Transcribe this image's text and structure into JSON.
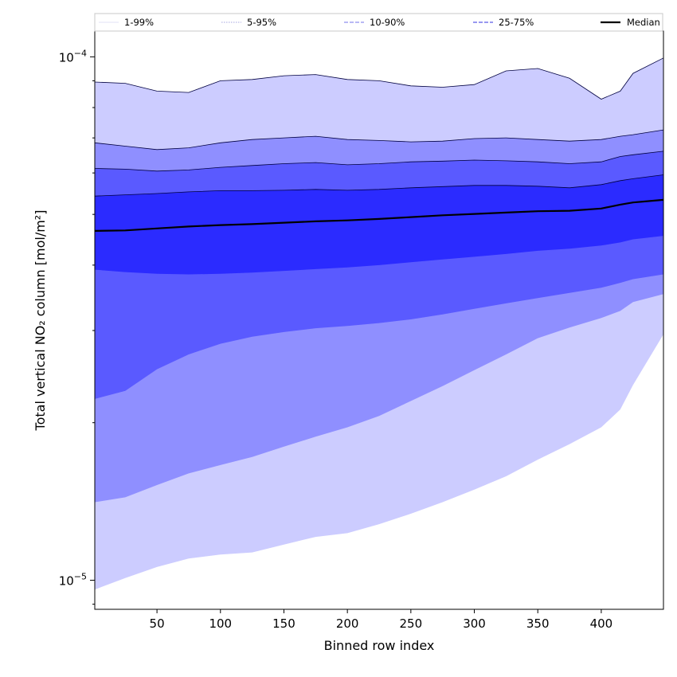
{
  "chart_data": {
    "type": "area",
    "xlabel": "Binned row index",
    "ylabel": "Total vertical NO₂ column [mol/m²]",
    "y_scale": "log",
    "xlim": [
      1,
      449
    ],
    "ylim": [
      8.8e-06,
      0.000112
    ],
    "x_ticks": [
      50,
      100,
      150,
      200,
      250,
      300,
      350,
      400
    ],
    "y_major_ticks": [
      {
        "value": 1e-05,
        "label_base": "10",
        "label_exp": "−5"
      },
      {
        "value": 0.0001,
        "label_base": "10",
        "label_exp": "−4"
      }
    ],
    "grid": false,
    "legend": {
      "placement": "top (full width)",
      "entries": [
        {
          "label": "1-99%",
          "color": "#e6e6f7",
          "style": "solid"
        },
        {
          "label": "5-95%",
          "color": "#b8b8e6",
          "style": "dotted"
        },
        {
          "label": "10-90%",
          "color": "#8f8fef",
          "style": "dashed"
        },
        {
          "label": "25-75%",
          "color": "#5a5ae6",
          "style": "dashed"
        },
        {
          "label": "Median",
          "color": "#000000",
          "style": "solid"
        }
      ]
    },
    "x": [
      1,
      25,
      50,
      75,
      100,
      125,
      150,
      175,
      200,
      225,
      250,
      275,
      300,
      325,
      350,
      375,
      400,
      415,
      425,
      449
    ],
    "bands": [
      {
        "name": "1-99%",
        "color": "#ccccff",
        "lower": [
          9.6e-06,
          1.01e-05,
          1.06e-05,
          1.1e-05,
          1.12e-05,
          1.13e-05,
          1.17e-05,
          1.21e-05,
          1.23e-05,
          1.28e-05,
          1.34e-05,
          1.41e-05,
          1.49e-05,
          1.58e-05,
          1.7e-05,
          1.82e-05,
          1.96e-05,
          2.12e-05,
          2.36e-05,
          2.95e-05
        ],
        "upper": [
          8.95e-05,
          8.9e-05,
          8.6e-05,
          8.55e-05,
          9e-05,
          9.05e-05,
          9.2e-05,
          9.25e-05,
          9.05e-05,
          9e-05,
          8.8e-05,
          8.75e-05,
          8.85e-05,
          9.4e-05,
          9.5e-05,
          9.1e-05,
          8.3e-05,
          8.6e-05,
          9.3e-05,
          9.95e-05
        ]
      },
      {
        "name": "5-95%",
        "color": "#8f8fff",
        "lower": [
          1.41e-05,
          1.44e-05,
          1.52e-05,
          1.6e-05,
          1.66e-05,
          1.72e-05,
          1.8e-05,
          1.88e-05,
          1.96e-05,
          2.06e-05,
          2.2e-05,
          2.35e-05,
          2.52e-05,
          2.7e-05,
          2.9e-05,
          3.04e-05,
          3.17e-05,
          3.27e-05,
          3.4e-05,
          3.52e-05
        ],
        "upper": [
          6.85e-05,
          6.75e-05,
          6.65e-05,
          6.7e-05,
          6.85e-05,
          6.95e-05,
          7e-05,
          7.05e-05,
          6.95e-05,
          6.92e-05,
          6.88e-05,
          6.9e-05,
          6.98e-05,
          7e-05,
          6.95e-05,
          6.9e-05,
          6.95e-05,
          7.05e-05,
          7.1e-05,
          7.25e-05
        ]
      },
      {
        "name": "10-90%",
        "color": "#5a5aff",
        "lower": [
          2.22e-05,
          2.3e-05,
          2.53e-05,
          2.7e-05,
          2.83e-05,
          2.92e-05,
          2.98e-05,
          3.03e-05,
          3.06e-05,
          3.1e-05,
          3.15e-05,
          3.22e-05,
          3.3e-05,
          3.38e-05,
          3.46e-05,
          3.54e-05,
          3.62e-05,
          3.7e-05,
          3.76e-05,
          3.84e-05
        ],
        "upper": [
          6.12e-05,
          6.1e-05,
          6.05e-05,
          6.08e-05,
          6.15e-05,
          6.2e-05,
          6.25e-05,
          6.28e-05,
          6.22e-05,
          6.25e-05,
          6.3e-05,
          6.32e-05,
          6.35e-05,
          6.33e-05,
          6.3e-05,
          6.25e-05,
          6.3e-05,
          6.45e-05,
          6.5e-05,
          6.6e-05
        ]
      },
      {
        "name": "25-75%",
        "color": "#2b2bff",
        "lower": [
          3.92e-05,
          3.88e-05,
          3.85e-05,
          3.84e-05,
          3.85e-05,
          3.87e-05,
          3.9e-05,
          3.93e-05,
          3.96e-05,
          4e-05,
          4.05e-05,
          4.1e-05,
          4.15e-05,
          4.2e-05,
          4.26e-05,
          4.3e-05,
          4.36e-05,
          4.42e-05,
          4.48e-05,
          4.55e-05
        ],
        "upper": [
          5.42e-05,
          5.45e-05,
          5.48e-05,
          5.52e-05,
          5.55e-05,
          5.55e-05,
          5.56e-05,
          5.58e-05,
          5.56e-05,
          5.58e-05,
          5.62e-05,
          5.65e-05,
          5.68e-05,
          5.68e-05,
          5.66e-05,
          5.62e-05,
          5.7e-05,
          5.8e-05,
          5.85e-05,
          5.95e-05
        ]
      }
    ],
    "median": [
      4.65e-05,
      4.66e-05,
      4.7e-05,
      4.74e-05,
      4.77e-05,
      4.79e-05,
      4.82e-05,
      4.85e-05,
      4.87e-05,
      4.9e-05,
      4.94e-05,
      4.98e-05,
      5.01e-05,
      5.04e-05,
      5.07e-05,
      5.08e-05,
      5.13e-05,
      5.22e-05,
      5.27e-05,
      5.33e-05
    ]
  }
}
